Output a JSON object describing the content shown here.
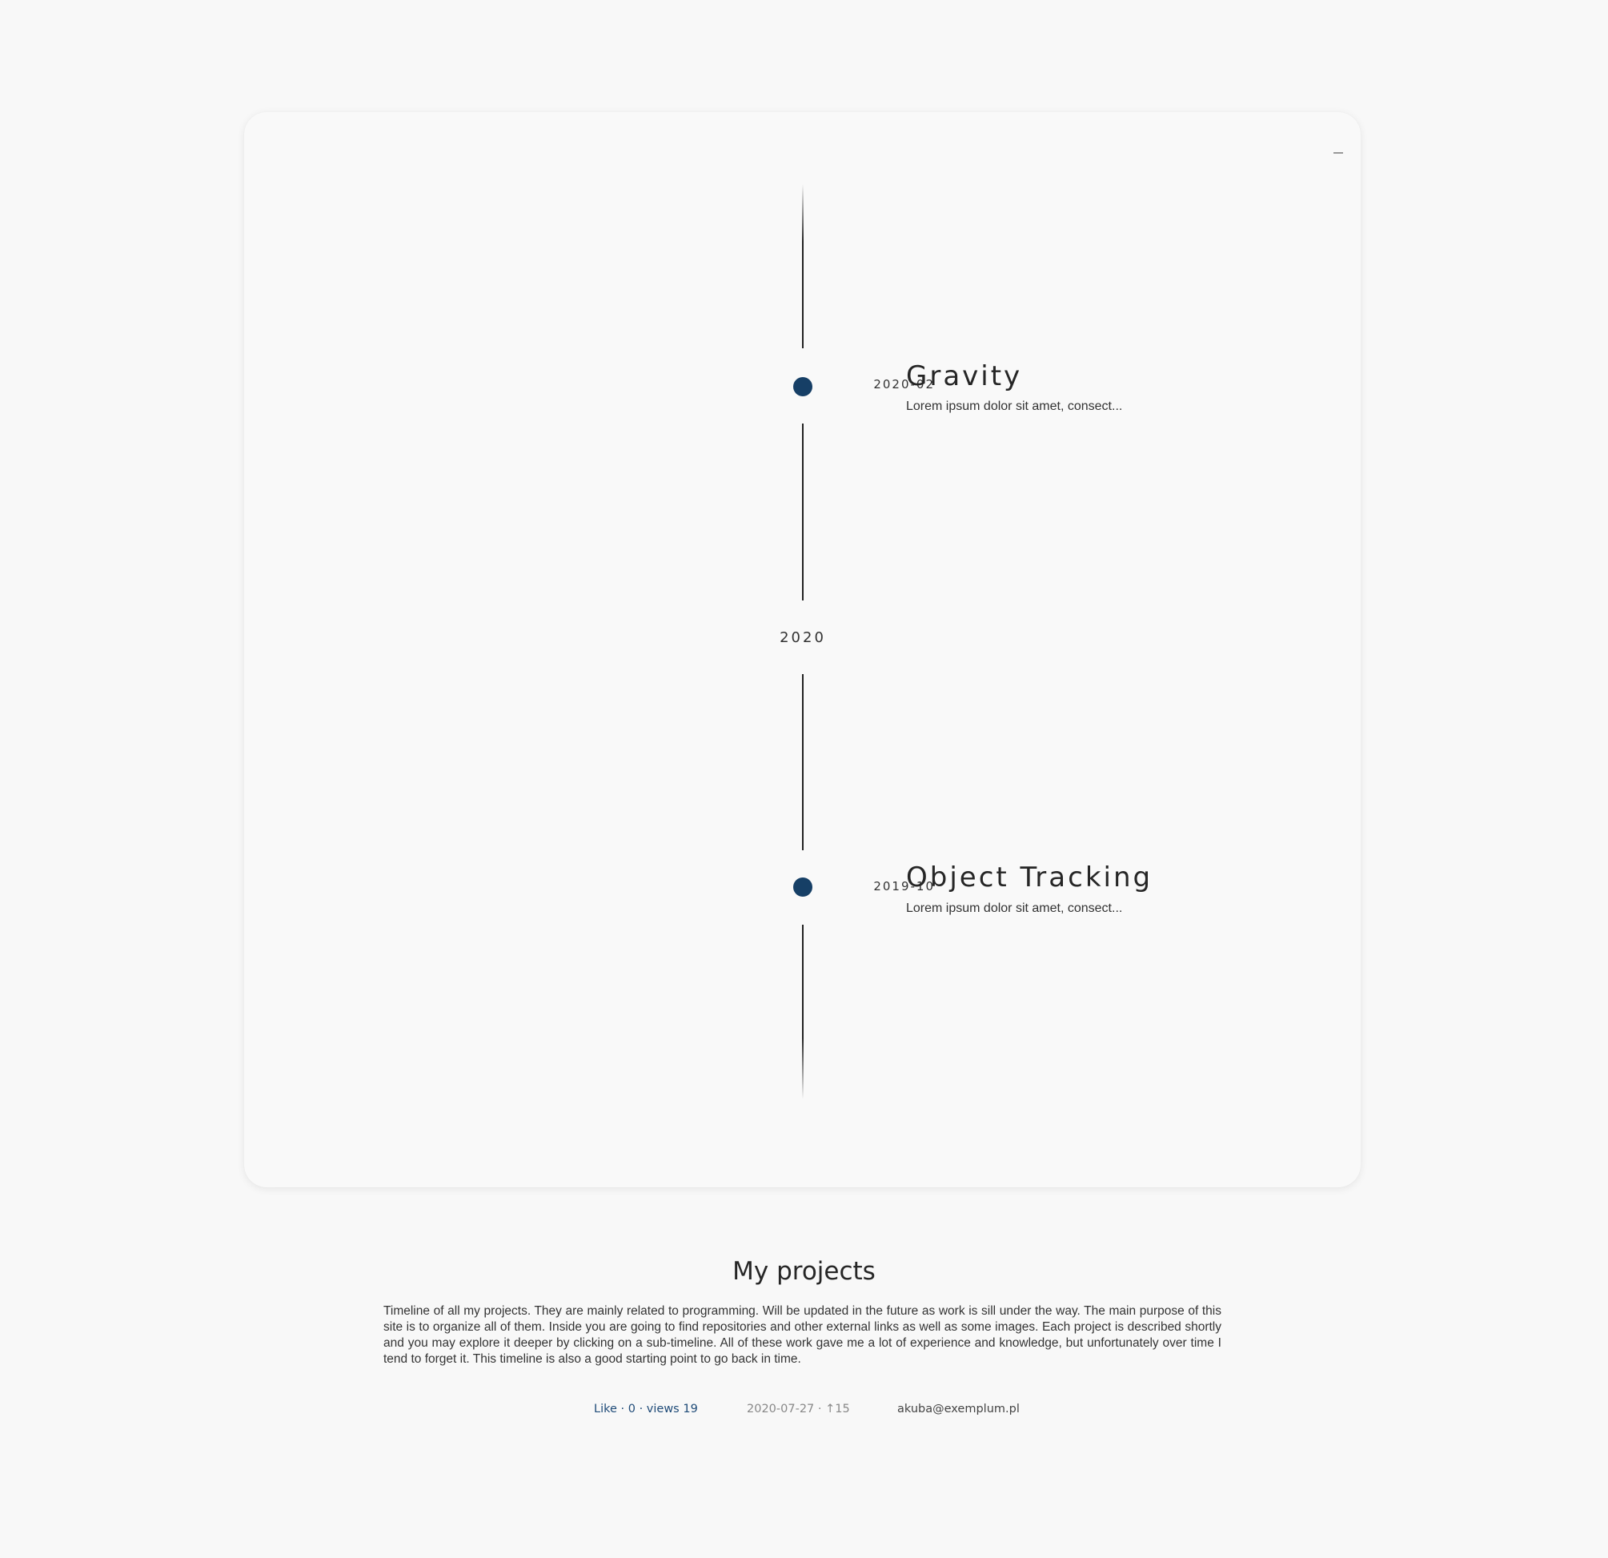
{
  "timeline": {
    "entries": [
      {
        "date": "2020-02",
        "title": "Gravity",
        "description": "Lorem ipsum dolor sit amet, consect..."
      },
      {
        "date": "2019-10",
        "title": "Object Tracking",
        "description": "Lorem ipsum dolor sit amet, consect..."
      }
    ],
    "year_marker": "2020",
    "dot_color": "#163f66"
  },
  "page": {
    "heading": "My projects",
    "description": "Timeline of all my projects. They are mainly related to programming. Will be updated in the future as work is sill under the way. The main purpose of this site is to organize all of them. Inside you are going to find repositories and other external links as well as some images. Each project is described shortly and you may explore it deeper by clicking on a sub-timeline. All of these work gave me a lot of experience and knowledge, but unfortunately over time I tend to forget it. This timeline is also a good starting point to go back in time."
  },
  "footer": {
    "like_text": "Like · 0 · views 19",
    "meta_text": "2020-07-27 · ↑15",
    "email": "akuba@exemplum.pl",
    "link_color": "#1f4b78"
  }
}
